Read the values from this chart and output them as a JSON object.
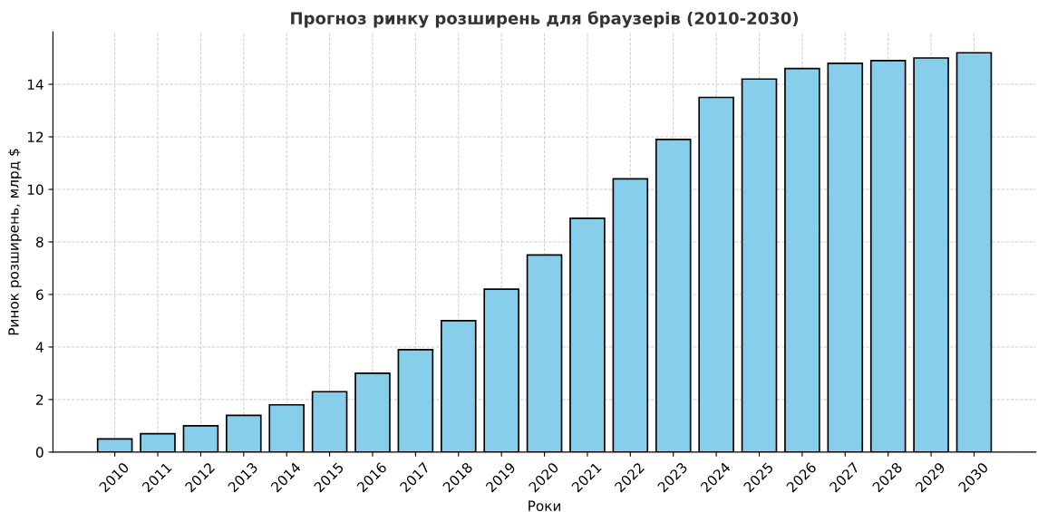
{
  "chart_data": {
    "type": "bar",
    "title": "Прогноз ринку розширень для браузерів (2010-2030)",
    "xlabel": "Роки",
    "ylabel": "Ринок розширень, млрд $",
    "categories": [
      "2010",
      "2011",
      "2012",
      "2013",
      "2014",
      "2015",
      "2016",
      "2017",
      "2018",
      "2019",
      "2020",
      "2021",
      "2022",
      "2023",
      "2024",
      "2025",
      "2026",
      "2027",
      "2028",
      "2029",
      "2030"
    ],
    "values": [
      0.5,
      0.7,
      1.0,
      1.4,
      1.8,
      2.3,
      3.0,
      3.9,
      5.0,
      6.2,
      7.5,
      8.9,
      10.4,
      11.9,
      13.5,
      14.2,
      14.6,
      14.8,
      14.9,
      15.0,
      15.2
    ],
    "color": "#87ceeb",
    "ylim": [
      0,
      16
    ],
    "yticks": [
      0,
      2,
      4,
      6,
      8,
      10,
      12,
      14
    ],
    "grid": true
  }
}
